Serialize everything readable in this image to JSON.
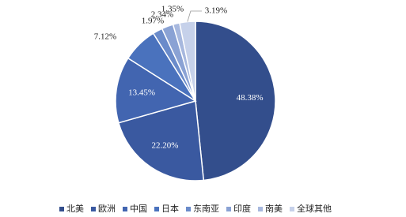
{
  "chart_data": {
    "type": "pie",
    "categories": [
      "北美",
      "欧洲",
      "中国",
      "日本",
      "东南亚",
      "印度",
      "南美",
      "全球其他"
    ],
    "values": [
      48.38,
      22.2,
      13.45,
      7.12,
      1.97,
      2.34,
      1.35,
      3.19
    ],
    "value_labels": [
      "48.38%",
      "22.20%",
      "13.45%",
      "7.12%",
      "1.97%",
      "2.34%",
      "1.35%",
      "3.19%"
    ],
    "colors": [
      "#334e8c",
      "#3a59a0",
      "#4265b0",
      "#4a72bd",
      "#6a8bca",
      "#8aa2d4",
      "#a7b8de",
      "#c6d1ea"
    ],
    "legend": "bottom"
  }
}
